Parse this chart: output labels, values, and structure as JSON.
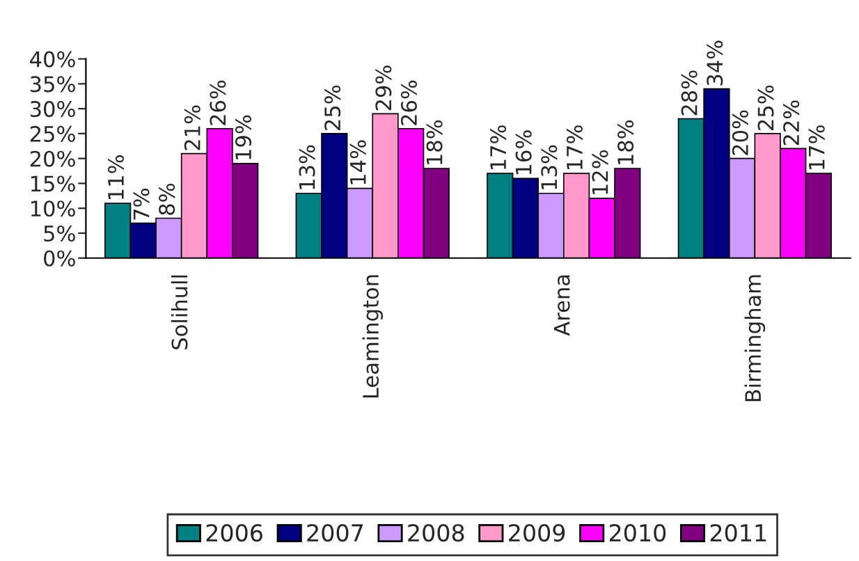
{
  "chart_data": {
    "type": "bar",
    "categories": [
      "Solihull",
      "Leamington",
      "Arena",
      "Birmingham"
    ],
    "series": [
      {
        "name": "2006",
        "color": "#008080",
        "values": [
          11,
          13,
          17,
          28
        ],
        "value_labels": [
          "11%",
          "13%",
          "17%",
          "28%"
        ]
      },
      {
        "name": "2007",
        "color": "#000080",
        "values": [
          7,
          25,
          16,
          34
        ],
        "value_labels": [
          "7%",
          "25%",
          "16%",
          "34%"
        ]
      },
      {
        "name": "2008",
        "color": "#cc99ff",
        "values": [
          8,
          14,
          13,
          20
        ],
        "value_labels": [
          "8%",
          "14%",
          "13%",
          "20%"
        ]
      },
      {
        "name": "2009",
        "color": "#ff99cc",
        "values": [
          21,
          29,
          17,
          25
        ],
        "value_labels": [
          "21%",
          "29%",
          "17%",
          "25%"
        ]
      },
      {
        "name": "2010",
        "color": "#ff00ff",
        "values": [
          26,
          26,
          12,
          22
        ],
        "value_labels": [
          "26%",
          "26%",
          "12%",
          "22%"
        ]
      },
      {
        "name": "2011",
        "color": "#800080",
        "values": [
          19,
          18,
          18,
          17
        ],
        "value_labels": [
          "19%",
          "18%",
          "18%",
          "17%"
        ]
      }
    ],
    "ylim": [
      0,
      40
    ],
    "yticks": [
      {
        "value": 0,
        "label": "0%"
      },
      {
        "value": 5,
        "label": "5%"
      },
      {
        "value": 10,
        "label": "10%"
      },
      {
        "value": 15,
        "label": "15%"
      },
      {
        "value": 20,
        "label": "20%"
      },
      {
        "value": 25,
        "label": "25%"
      },
      {
        "value": 30,
        "label": "30%"
      },
      {
        "value": 35,
        "label": "35%"
      },
      {
        "value": 40,
        "label": "40%"
      }
    ],
    "grid": false,
    "legend": "bottom"
  }
}
